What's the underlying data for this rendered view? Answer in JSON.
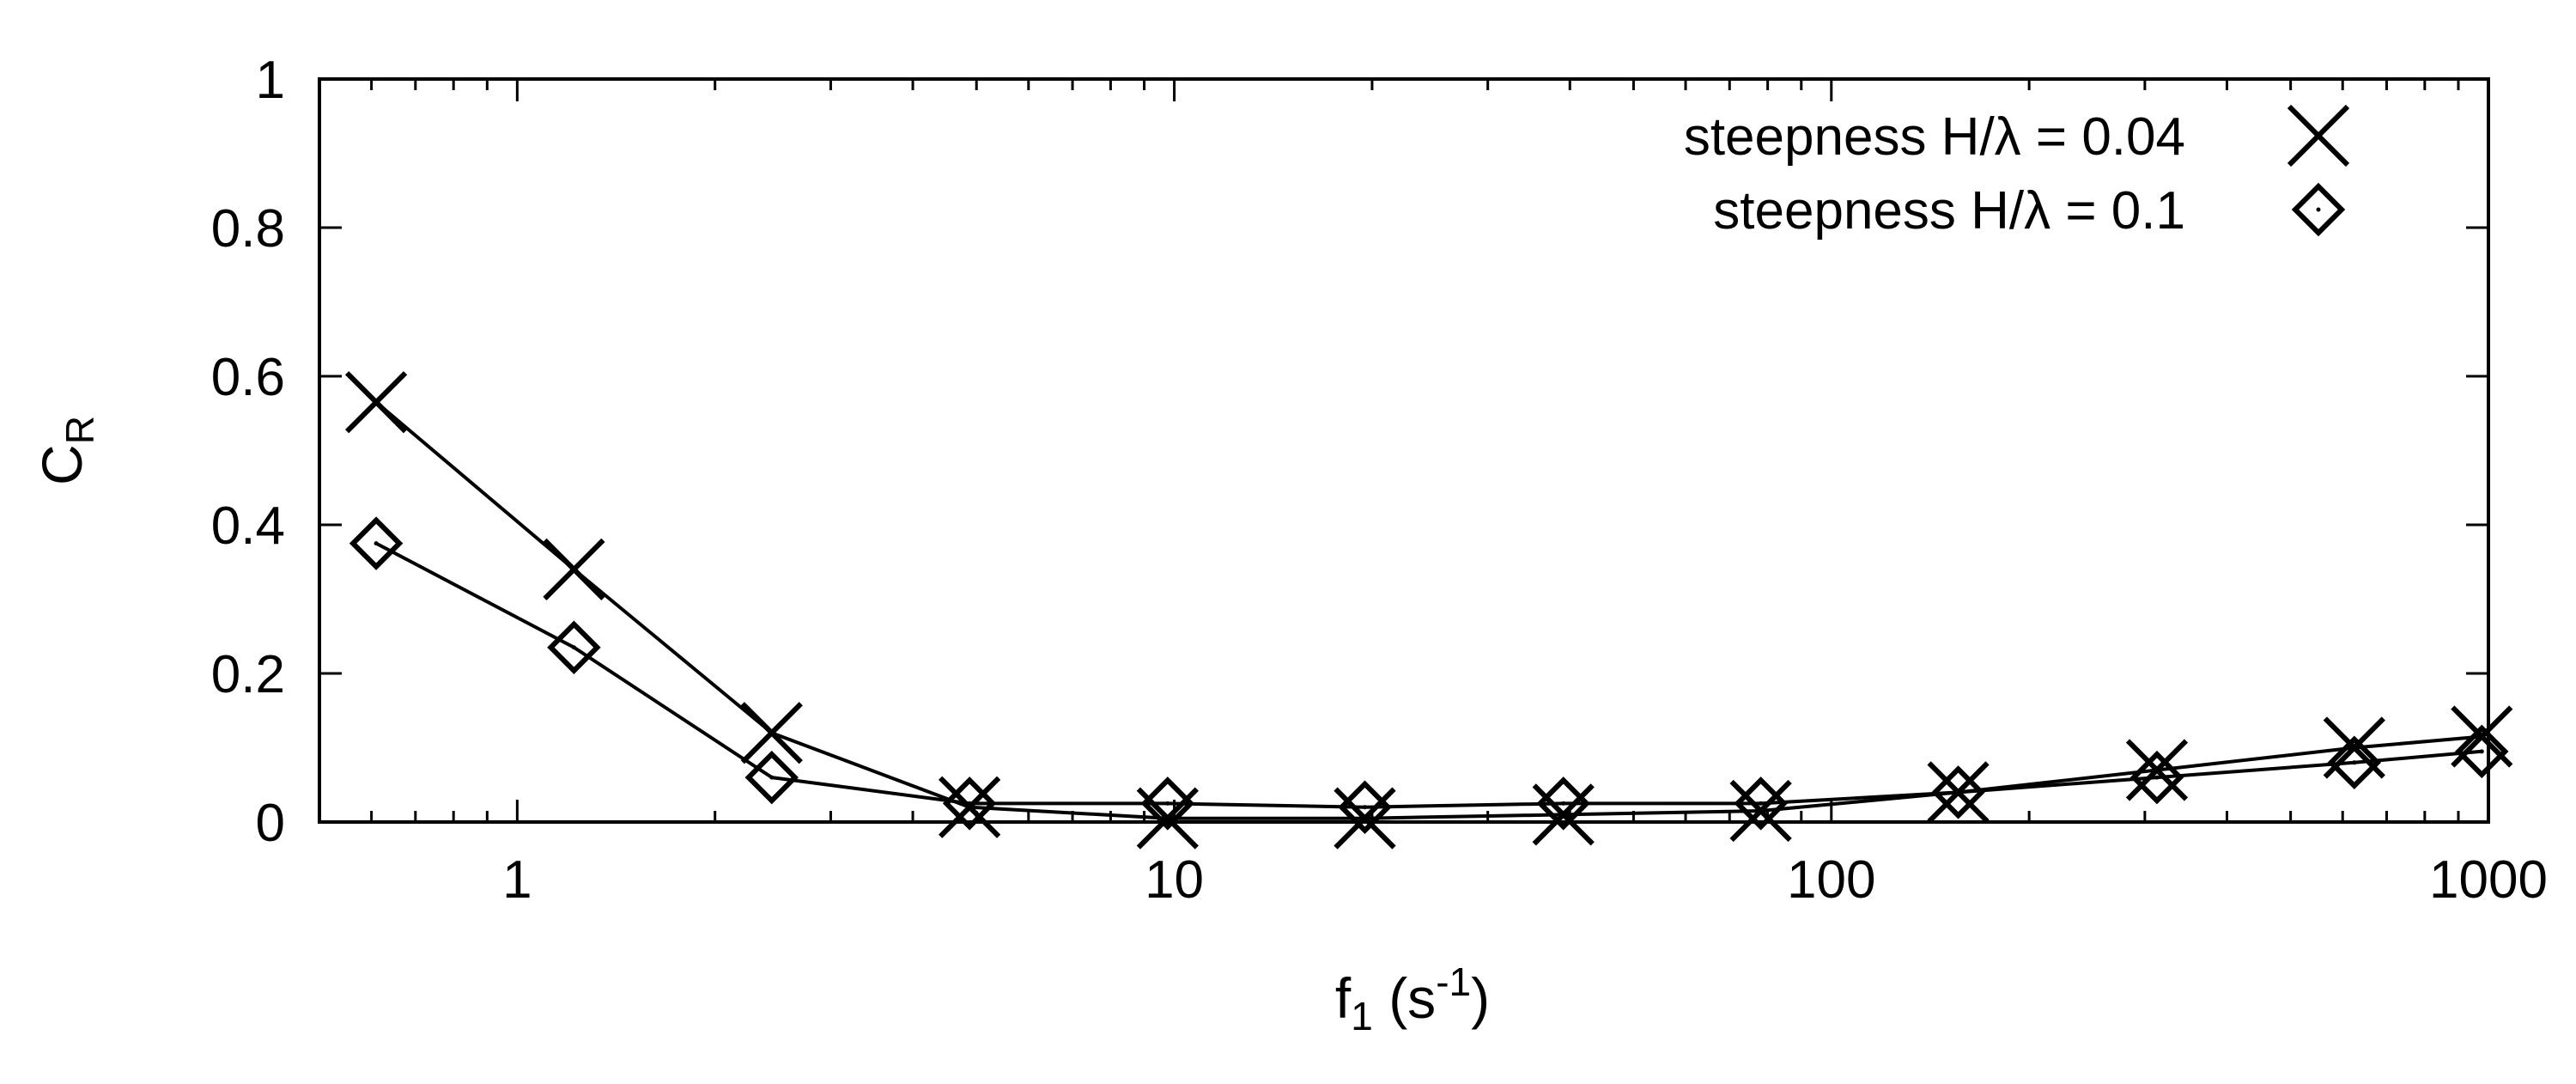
{
  "chart_data": {
    "type": "line",
    "xscale": "log",
    "xlim": [
      0.5,
      1000
    ],
    "ylim": [
      0,
      1
    ],
    "grid": false,
    "legend_position": "top-right",
    "xlabel": {
      "main": "f",
      "sub": "1",
      "open": " (s",
      "sup": "-1",
      "close": ")"
    },
    "ylabel": {
      "main": "C",
      "sub": "R"
    },
    "x_ticks": [
      {
        "value": 1,
        "label": "1"
      },
      {
        "value": 10,
        "label": "10"
      },
      {
        "value": 100,
        "label": "100"
      },
      {
        "value": 1000,
        "label": "1000"
      }
    ],
    "y_ticks": [
      {
        "value": 0,
        "label": "0"
      },
      {
        "value": 0.2,
        "label": "0.2"
      },
      {
        "value": 0.4,
        "label": "0.4"
      },
      {
        "value": 0.6,
        "label": "0.6"
      },
      {
        "value": 0.8,
        "label": "0.8"
      },
      {
        "value": 1,
        "label": "1"
      }
    ],
    "series": [
      {
        "name": "steepness H/λ = 0.04",
        "marker": "cross",
        "x": [
          0.61,
          1.22,
          2.44,
          4.88,
          9.77,
          19.5,
          39.1,
          78.1,
          156,
          313,
          625,
          977
        ],
        "y": [
          0.565,
          0.34,
          0.12,
          0.02,
          0.005,
          0.005,
          0.01,
          0.015,
          0.04,
          0.07,
          0.1,
          0.115
        ]
      },
      {
        "name": "steepness H/λ = 0.1",
        "marker": "diamond",
        "x": [
          0.61,
          1.22,
          2.44,
          4.88,
          9.77,
          19.5,
          39.1,
          78.1,
          156,
          313,
          625,
          977
        ],
        "y": [
          0.375,
          0.235,
          0.06,
          0.025,
          0.025,
          0.02,
          0.025,
          0.025,
          0.04,
          0.06,
          0.08,
          0.095
        ]
      }
    ],
    "colors": {
      "line": "#000000",
      "background": "#ffffff"
    }
  }
}
